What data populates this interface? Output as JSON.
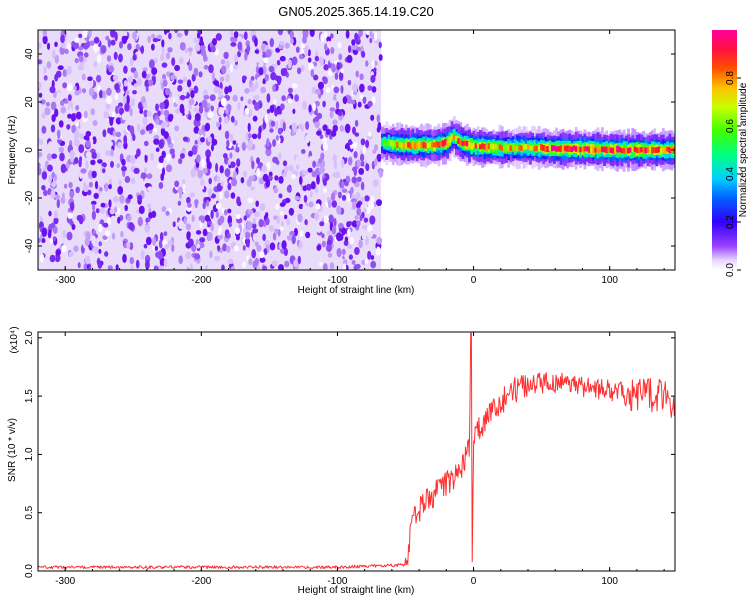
{
  "title": "GN05.2025.365.14.19.C20",
  "chart_data": [
    {
      "type": "heatmap",
      "xlabel": "Height of straight line (km)",
      "ylabel": "Frequency (Hz)",
      "xlim": [
        -320,
        148
      ],
      "ylim": [
        -50,
        50
      ],
      "x_ticks": [
        -300,
        -200,
        -100,
        0,
        100
      ],
      "y_ticks": [
        -40,
        -20,
        0,
        20,
        40
      ],
      "colorbar": {
        "label": "Normalized spectral amplitude",
        "range": [
          0.0,
          1.0
        ],
        "ticks": [
          "0.0",
          "0.2",
          "0.4",
          "0.6",
          "0.8"
        ],
        "colormap": [
          "#f4ecfc",
          "#7a00ff",
          "#0000ff",
          "#00c8ff",
          "#00ff60",
          "#c8ff00",
          "#ffb000",
          "#ff2020",
          "#ff0090"
        ]
      },
      "noise_region_x": [
        -320,
        -68
      ],
      "signal_band": {
        "x": [
          -68,
          -60,
          -50,
          -40,
          -30,
          -20,
          -16,
          -10,
          0,
          20,
          40,
          60,
          80,
          100,
          120,
          148
        ],
        "center_freq_hz": [
          3,
          2.5,
          2,
          2,
          2,
          3,
          6,
          3,
          1.5,
          1,
          1,
          0.5,
          0.5,
          0,
          0,
          0
        ],
        "peak_amplitude": [
          0.6,
          0.8,
          0.85,
          0.85,
          0.85,
          0.9,
          0.8,
          0.9,
          0.9,
          0.8,
          0.75,
          0.95,
          0.95,
          0.9,
          0.95,
          0.9
        ]
      }
    },
    {
      "type": "line",
      "xlabel": "Height of straight line (km)",
      "ylabel": "SNR (10 * v/v)",
      "y_multiplier": "(x10⁴)",
      "xlim": [
        -320,
        148
      ],
      "ylim": [
        0,
        2.05
      ],
      "x_ticks": [
        -300,
        -200,
        -100,
        0,
        100
      ],
      "y_ticks": [
        0.0,
        0.5,
        1.0,
        1.5,
        2.0
      ],
      "series": [
        {
          "color": "#ff3030",
          "x": [
            -320,
            -100,
            -50,
            -48,
            -46,
            -44,
            -40,
            -30,
            -20,
            -12,
            -6,
            -3,
            -2,
            -1,
            0,
            2,
            10,
            20,
            30,
            40,
            60,
            80,
            100,
            120,
            140,
            148
          ],
          "y": [
            0.02,
            0.02,
            0.04,
            0.15,
            0.42,
            0.48,
            0.52,
            0.65,
            0.75,
            0.82,
            0.95,
            1.05,
            2.0,
            0.1,
            1.1,
            1.2,
            1.3,
            1.45,
            1.55,
            1.6,
            1.62,
            1.58,
            1.55,
            1.52,
            1.5,
            1.45
          ]
        }
      ]
    }
  ]
}
